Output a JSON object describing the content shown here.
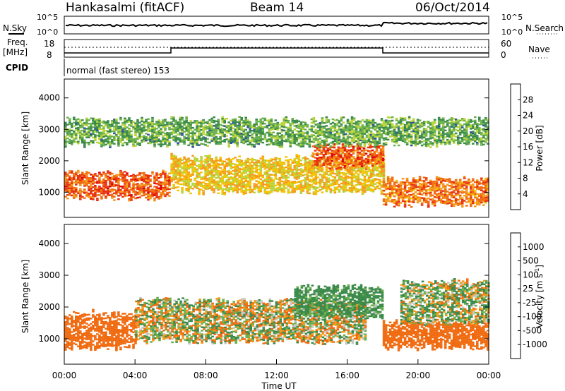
{
  "header": {
    "station": "Hankasalmi (fitACF)",
    "beam": "Beam 14",
    "date": "06/Oct/2014"
  },
  "top_panels": {
    "nsky_label": "N.Sky",
    "nsky_ticks": [
      "10^5",
      "10^0"
    ],
    "nsearch_ticks": [
      "10^5",
      "10^0"
    ],
    "nsearch_label": "N.Search",
    "freq_label_line1": "Freq.",
    "freq_label_line2": "[MHz]",
    "freq_ticks": [
      "18",
      "8"
    ],
    "nave_ticks": [
      "60",
      "0"
    ],
    "nave_label": "Nave",
    "cpid_label": "CPID",
    "cpid_text": "normal (fast stereo) 153"
  },
  "colors": {
    "power_scale": [
      "#1a1aff",
      "#2f4f9f",
      "#3a8a4a",
      "#6ab04c",
      "#b8d43a",
      "#f5c400",
      "#f59a1a",
      "#f06a10",
      "#e83010",
      "#e00000"
    ],
    "velocity_scale": [
      "#e00000",
      "#f06a10",
      "#f59a1a",
      "#c8c8c0",
      "#c8c8c0",
      "#6ab04c",
      "#3a8a4a",
      "#2f5fa8",
      "#2040c0"
    ]
  },
  "chart_data": [
    {
      "type": "heatmap",
      "title": "",
      "xlabel": "",
      "ylabel": "Slant Range [km]",
      "x_range": [
        "00:00",
        "24:00"
      ],
      "ylim": [
        200,
        4600
      ],
      "y_ticks": [
        1000,
        2000,
        3000,
        4000
      ],
      "colorbar": {
        "label": "Power [dB]",
        "range": [
          0,
          32
        ],
        "ticks": [
          "4",
          "8",
          "12",
          "16",
          "20",
          "24",
          "28"
        ]
      },
      "features": [
        {
          "hours": [
            0,
            6
          ],
          "range_km": [
            800,
            1600
          ],
          "level_db": 26
        },
        {
          "hours": [
            6,
            18
          ],
          "range_km": [
            1000,
            2100
          ],
          "level_db": 18
        },
        {
          "hours": [
            14,
            18
          ],
          "range_km": [
            1800,
            2500
          ],
          "level_db": 26
        },
        {
          "hours": [
            18,
            24
          ],
          "range_km": [
            600,
            1400
          ],
          "level_db": 24
        },
        {
          "hours": [
            0,
            24
          ],
          "range_km": [
            2500,
            3300
          ],
          "level_db": 10
        }
      ]
    },
    {
      "type": "heatmap",
      "title": "",
      "xlabel": "Time UT",
      "ylabel": "Slant Range [km]",
      "x_ticks": [
        "00:00",
        "04:00",
        "08:00",
        "12:00",
        "16:00",
        "20:00",
        "00:00"
      ],
      "ylim": [
        200,
        4600
      ],
      "y_ticks": [
        1000,
        2000,
        3000,
        4000
      ],
      "colorbar": {
        "label": "Velocity [m s^-1]",
        "ticks": [
          "1000",
          "500",
          "100",
          "25",
          "-25",
          "-100",
          "-500",
          "-1000"
        ]
      },
      "features": [
        {
          "hours": [
            0,
            4
          ],
          "range_km": [
            700,
            1800
          ],
          "velocity": -300
        },
        {
          "hours": [
            4,
            17
          ],
          "range_km": [
            900,
            2200
          ],
          "velocity": 0
        },
        {
          "hours": [
            13,
            18
          ],
          "range_km": [
            1700,
            2600
          ],
          "velocity": 200
        },
        {
          "hours": [
            18,
            24
          ],
          "range_km": [
            700,
            1500
          ],
          "velocity": -300
        },
        {
          "hours": [
            19,
            24
          ],
          "range_km": [
            1500,
            2800
          ],
          "velocity": 50
        }
      ]
    }
  ]
}
